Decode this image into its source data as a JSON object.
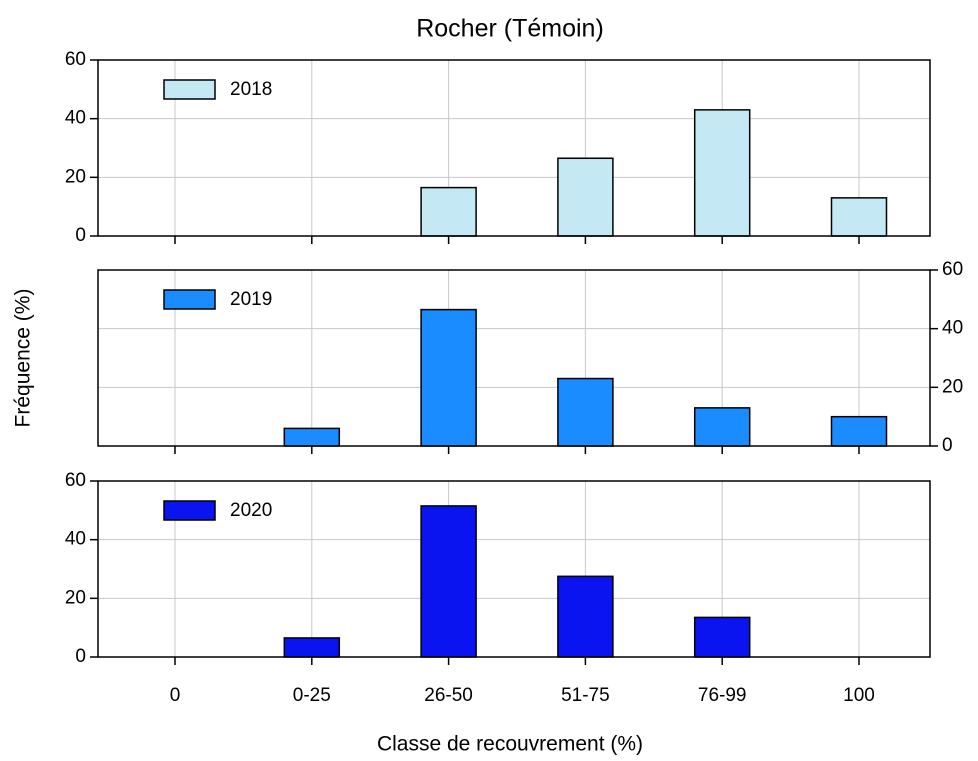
{
  "title": "Rocher (Témoin)",
  "xlabel": "Classe de recouvrement (%)",
  "ylabel": "Fréquence (%)",
  "categories": [
    "0",
    "0-25",
    "26-50",
    "51-75",
    "76-99",
    "100"
  ],
  "chart_data": [
    {
      "type": "bar",
      "series": [
        {
          "name": "2018",
          "color": "#c5e8f5",
          "values": [
            0,
            0,
            16.5,
            26.5,
            43,
            13
          ]
        }
      ],
      "ylim": [
        0,
        60
      ],
      "yticks": [
        0,
        20,
        40,
        60
      ],
      "yaxis_side": "left",
      "grid": true
    },
    {
      "type": "bar",
      "series": [
        {
          "name": "2019",
          "color": "#1a8cff",
          "values": [
            0,
            6,
            46.5,
            23,
            13,
            10
          ]
        }
      ],
      "ylim": [
        0,
        60
      ],
      "yticks": [
        0,
        20,
        40,
        60
      ],
      "yaxis_side": "right",
      "grid": true
    },
    {
      "type": "bar",
      "series": [
        {
          "name": "2020",
          "color": "#0a14f0",
          "values": [
            0,
            6.5,
            51.5,
            27.5,
            13.5,
            0
          ]
        }
      ],
      "ylim": [
        0,
        60
      ],
      "yticks": [
        0,
        20,
        40,
        60
      ],
      "yaxis_side": "left",
      "grid": true
    }
  ]
}
